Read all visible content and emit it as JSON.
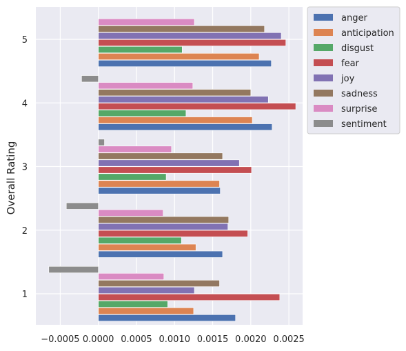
{
  "chart_data": {
    "type": "bar",
    "orientation": "horizontal",
    "title": "",
    "xlabel": "",
    "ylabel": "Overall Rating",
    "categories": [
      "1",
      "2",
      "3",
      "4",
      "5"
    ],
    "xlim": [
      -0.00082,
      0.00268
    ],
    "x_ticks": [
      -0.0005,
      0.0,
      0.0005,
      0.001,
      0.0015,
      0.002,
      0.0025
    ],
    "x_tick_labels": [
      "−0.0005",
      "0.0000",
      "0.0005",
      "0.0010",
      "0.0015",
      "0.0020",
      "0.0025"
    ],
    "grid": true,
    "legend_position": "upper-right-outside",
    "series": [
      {
        "name": "anger",
        "color": "#4c72b0",
        "values": [
          0.0018,
          0.00163,
          0.0016,
          0.00228,
          0.00227
        ]
      },
      {
        "name": "anticipation",
        "color": "#dd8452",
        "values": [
          0.00125,
          0.00128,
          0.00159,
          0.00202,
          0.00211
        ]
      },
      {
        "name": "disgust",
        "color": "#55a868",
        "values": [
          0.00091,
          0.00109,
          0.00089,
          0.00115,
          0.0011
        ]
      },
      {
        "name": "fear",
        "color": "#c44e52",
        "values": [
          0.00238,
          0.00196,
          0.00201,
          0.00259,
          0.00246
        ]
      },
      {
        "name": "joy",
        "color": "#8172b3",
        "values": [
          0.00126,
          0.0017,
          0.00185,
          0.00223,
          0.0024
        ]
      },
      {
        "name": "sadness",
        "color": "#937860",
        "values": [
          0.00159,
          0.00171,
          0.00163,
          0.002,
          0.00218
        ]
      },
      {
        "name": "surprise",
        "color": "#da8bc3",
        "values": [
          0.00086,
          0.00085,
          0.00096,
          0.00124,
          0.00126
        ]
      },
      {
        "name": "sentiment",
        "color": "#8c8c8c",
        "values": [
          -0.00065,
          -0.00042,
          8e-05,
          -0.00022,
          0.0
        ]
      }
    ]
  }
}
